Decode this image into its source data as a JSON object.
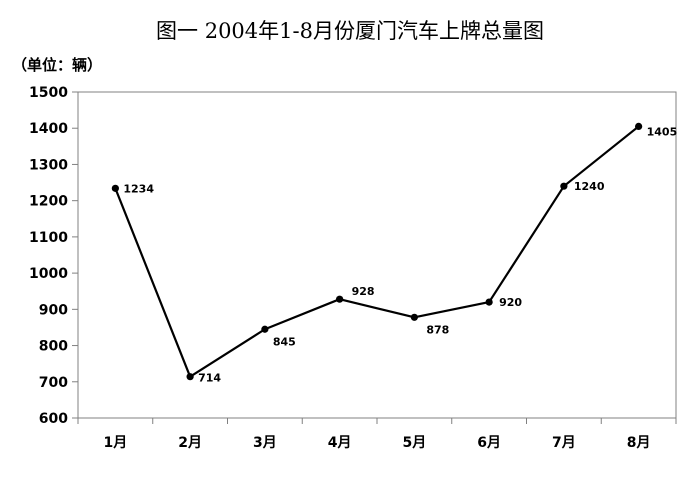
{
  "chart_data": {
    "type": "line",
    "title": "图一 2004年1-8月份厦门汽车上牌总量图",
    "unit_label": "（单位：辆）",
    "categories": [
      "1月",
      "2月",
      "3月",
      "4月",
      "5月",
      "6月",
      "7月",
      "8月"
    ],
    "series": [
      {
        "values": [
          1234,
          714,
          845,
          928,
          878,
          920,
          1240,
          1405
        ]
      }
    ],
    "data_labels": [
      "1234",
      "714",
      "845",
      "928",
      "878",
      "920",
      "1240",
      "1405"
    ],
    "ylim": [
      600,
      1500
    ],
    "yticks": [
      "600",
      "700",
      "800",
      "900",
      "1000",
      "1100",
      "1200",
      "1300",
      "1400",
      "1500"
    ],
    "ytick_values": [
      600,
      700,
      800,
      900,
      1000,
      1100,
      1200,
      1300,
      1400,
      1500
    ],
    "grid": false,
    "legend": "none",
    "colors": {
      "line": "#000000",
      "axis": "#808080",
      "background": "#ffffff"
    }
  }
}
